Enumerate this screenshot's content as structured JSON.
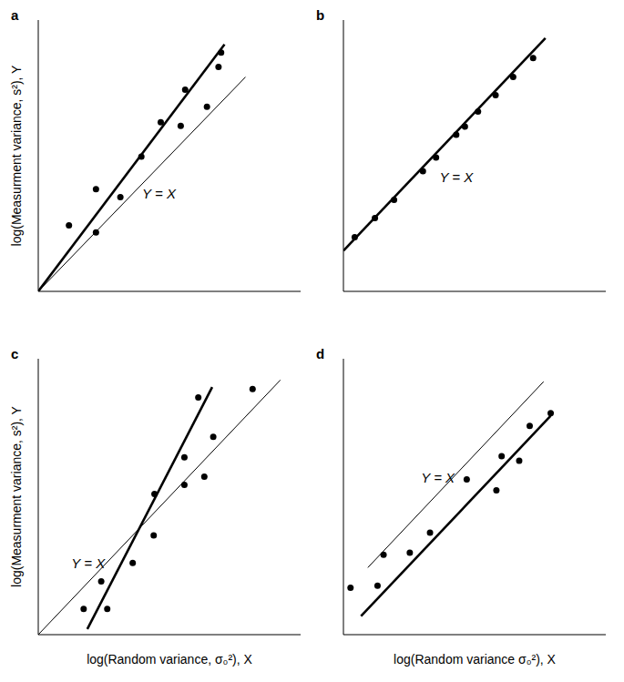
{
  "chart_data": [
    {
      "type": "scatter",
      "title": "a",
      "y_label": "log(Measurment variance, s²), Y",
      "tick_labels": false,
      "xlim": [
        0,
        10
      ],
      "ylim": [
        0,
        10
      ],
      "series": [
        {
          "type": "scatter",
          "marker": "circle",
          "color": "#000000",
          "points": [
            [
              1.17,
              2.43
            ],
            [
              2.2,
              3.77
            ],
            [
              2.2,
              2.17
            ],
            [
              3.13,
              3.47
            ],
            [
              3.93,
              4.97
            ],
            [
              4.67,
              6.23
            ],
            [
              5.43,
              6.1
            ],
            [
              5.6,
              7.43
            ],
            [
              6.43,
              6.8
            ],
            [
              6.87,
              8.27
            ],
            [
              6.97,
              8.8
            ]
          ]
        },
        {
          "type": "line",
          "line_style": "solid",
          "color": "#000000",
          "points": [
            [
              0,
              0
            ],
            [
              7.1,
              9.1
            ]
          ]
        },
        {
          "type": "reference",
          "line_style": "solid",
          "color": "#000000",
          "points": [
            [
              0,
              0
            ],
            [
              7.9,
              7.9
            ]
          ]
        }
      ],
      "annotations": [
        {
          "text": "Y = X",
          "x": 4.6,
          "y": 3.6
        }
      ]
    },
    {
      "type": "scatter",
      "title": "b",
      "tick_labels": false,
      "xlim": [
        0,
        10
      ],
      "ylim": [
        0,
        10
      ],
      "series": [
        {
          "type": "scatter",
          "marker": "circle",
          "color": "#000000",
          "points": [
            [
              0.43,
              2.0
            ],
            [
              1.2,
              2.7
            ],
            [
              1.93,
              3.37
            ],
            [
              3.03,
              4.43
            ],
            [
              3.53,
              4.93
            ],
            [
              4.3,
              5.77
            ],
            [
              4.63,
              6.07
            ],
            [
              5.13,
              6.63
            ],
            [
              5.8,
              7.23
            ],
            [
              6.47,
              7.9
            ],
            [
              7.23,
              8.6
            ]
          ]
        },
        {
          "type": "line",
          "line_style": "solid",
          "color": "#000000",
          "points": [
            [
              0,
              1.5
            ],
            [
              7.7,
              9.33
            ]
          ]
        }
      ],
      "annotations": [
        {
          "text": "Y = X",
          "x": 4.3,
          "y": 4.2
        }
      ]
    },
    {
      "type": "scatter",
      "title": "c",
      "y_label": "log(Measurment variance, s²), Y",
      "x_label": "log(Random variance, σ₀²), X",
      "tick_labels": false,
      "xlim": [
        0,
        10
      ],
      "ylim": [
        0,
        10
      ],
      "series": [
        {
          "type": "scatter",
          "marker": "circle",
          "color": "#000000",
          "points": [
            [
              1.73,
              0.93
            ],
            [
              2.4,
              1.93
            ],
            [
              2.63,
              0.93
            ],
            [
              3.6,
              2.6
            ],
            [
              4.4,
              3.6
            ],
            [
              4.43,
              5.1
            ],
            [
              5.57,
              5.43
            ],
            [
              5.57,
              6.43
            ],
            [
              6.33,
              5.73
            ],
            [
              6.67,
              7.17
            ],
            [
              6.1,
              8.6
            ],
            [
              8.17,
              8.9
            ]
          ]
        },
        {
          "type": "line",
          "line_style": "solid",
          "color": "#000000",
          "points": [
            [
              1.87,
              0.2
            ],
            [
              6.63,
              8.97
            ]
          ]
        },
        {
          "type": "reference",
          "line_style": "solid",
          "color": "#000000",
          "points": [
            [
              0,
              0
            ],
            [
              9.23,
              9.23
            ]
          ]
        }
      ],
      "annotations": [
        {
          "text": "Y = X",
          "x": 1.9,
          "y": 2.6
        }
      ]
    },
    {
      "type": "scatter",
      "title": "d",
      "x_label": "log(Random variance σ₀²), X",
      "tick_labels": false,
      "xlim": [
        0,
        10
      ],
      "ylim": [
        0,
        10
      ],
      "series": [
        {
          "type": "scatter",
          "marker": "circle",
          "color": "#000000",
          "points": [
            [
              0.27,
              1.7
            ],
            [
              1.3,
              1.77
            ],
            [
              1.53,
              2.9
            ],
            [
              2.53,
              2.97
            ],
            [
              3.3,
              3.7
            ],
            [
              4.7,
              5.63
            ],
            [
              5.83,
              5.23
            ],
            [
              6.03,
              6.47
            ],
            [
              6.7,
              6.3
            ],
            [
              7.1,
              7.57
            ],
            [
              7.9,
              8.03
            ]
          ]
        },
        {
          "type": "line",
          "line_style": "solid",
          "color": "#000000",
          "points": [
            [
              0.67,
              0.67
            ],
            [
              7.9,
              7.93
            ]
          ]
        },
        {
          "type": "reference",
          "line_style": "solid",
          "color": "#000000",
          "points": [
            [
              0.93,
              2.43
            ],
            [
              7.63,
              9.17
            ]
          ]
        }
      ],
      "annotations": [
        {
          "text": "Y = X",
          "x": 3.6,
          "y": 5.7
        }
      ]
    }
  ]
}
